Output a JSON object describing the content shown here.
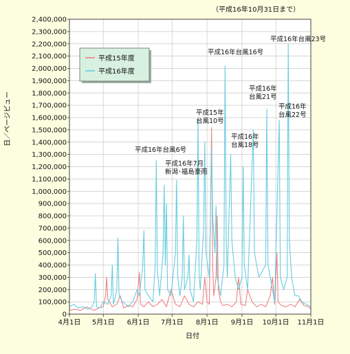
{
  "chart_data": {
    "type": "line",
    "title": "",
    "note": "（平成16年10月31日まで）",
    "xlabel": "日付",
    "ylabel": "日／ページビュー",
    "ylim": [
      0,
      2400000
    ],
    "yticks": [
      "0",
      "100,000",
      "200,000",
      "300,000",
      "400,000",
      "500,000",
      "600,000",
      "700,000",
      "800,000",
      "900,000",
      "1,000,000",
      "1,100,000",
      "1,200,000",
      "1,300,000",
      "1,400,000",
      "1,500,000",
      "1,600,000",
      "1,700,000",
      "1,800,000",
      "1,900,000",
      "2,000,000",
      "2,100,000",
      "2,200,000",
      "2,300,000",
      "2,400,000"
    ],
    "xticks": [
      "4月1日",
      "5月1日",
      "6月1日",
      "7月1日",
      "8月1日",
      "9月1日",
      "10月1日",
      "11月1日"
    ],
    "grid": true,
    "legend": "top-left",
    "series": [
      {
        "name": "平成15年度",
        "color": "#f08080",
        "points": [
          [
            0,
            30000
          ],
          [
            5,
            40000
          ],
          [
            10,
            30000
          ],
          [
            15,
            60000
          ],
          [
            18,
            45000
          ],
          [
            22,
            30000
          ],
          [
            26,
            50000
          ],
          [
            30,
            60000
          ],
          [
            32,
            150000
          ],
          [
            33,
            300000
          ],
          [
            34,
            120000
          ],
          [
            38,
            60000
          ],
          [
            42,
            80000
          ],
          [
            45,
            150000
          ],
          [
            48,
            50000
          ],
          [
            52,
            70000
          ],
          [
            56,
            60000
          ],
          [
            60,
            120000
          ],
          [
            62,
            340000
          ],
          [
            63,
            80000
          ],
          [
            66,
            60000
          ],
          [
            70,
            100000
          ],
          [
            74,
            60000
          ],
          [
            78,
            80000
          ],
          [
            82,
            120000
          ],
          [
            86,
            60000
          ],
          [
            90,
            200000
          ],
          [
            94,
            80000
          ],
          [
            98,
            60000
          ],
          [
            102,
            150000
          ],
          [
            106,
            80000
          ],
          [
            110,
            60000
          ],
          [
            114,
            100000
          ],
          [
            118,
            80000
          ],
          [
            120,
            300000
          ],
          [
            122,
            100000
          ],
          [
            124,
            80000
          ],
          [
            126,
            1520000
          ],
          [
            127,
            400000
          ],
          [
            128,
            150000
          ],
          [
            130,
            300000
          ],
          [
            131,
            800000
          ],
          [
            132,
            200000
          ],
          [
            134,
            100000
          ],
          [
            136,
            70000
          ],
          [
            140,
            80000
          ],
          [
            144,
            60000
          ],
          [
            148,
            100000
          ],
          [
            150,
            300000
          ],
          [
            152,
            80000
          ],
          [
            156,
            70000
          ],
          [
            158,
            200000
          ],
          [
            162,
            100000
          ],
          [
            166,
            60000
          ],
          [
            170,
            80000
          ],
          [
            174,
            60000
          ],
          [
            178,
            150000
          ],
          [
            180,
            300000
          ],
          [
            182,
            80000
          ],
          [
            184,
            500000
          ],
          [
            185,
            100000
          ],
          [
            188,
            70000
          ],
          [
            192,
            60000
          ],
          [
            196,
            80000
          ],
          [
            200,
            60000
          ],
          [
            204,
            120000
          ],
          [
            208,
            70000
          ],
          [
            212,
            60000
          ],
          [
            214,
            40000
          ]
        ]
      },
      {
        "name": "平成16年度",
        "color": "#66cce0",
        "points": [
          [
            0,
            60000
          ],
          [
            4,
            80000
          ],
          [
            8,
            50000
          ],
          [
            12,
            60000
          ],
          [
            16,
            40000
          ],
          [
            20,
            60000
          ],
          [
            22,
            100000
          ],
          [
            23,
            330000
          ],
          [
            24,
            60000
          ],
          [
            27,
            50000
          ],
          [
            30,
            100000
          ],
          [
            34,
            80000
          ],
          [
            37,
            150000
          ],
          [
            38,
            400000
          ],
          [
            39,
            80000
          ],
          [
            42,
            200000
          ],
          [
            43,
            620000
          ],
          [
            44,
            150000
          ],
          [
            47,
            100000
          ],
          [
            50,
            80000
          ],
          [
            52,
            60000
          ],
          [
            56,
            100000
          ],
          [
            60,
            200000
          ],
          [
            62,
            150000
          ],
          [
            65,
            400000
          ],
          [
            66,
            680000
          ],
          [
            67,
            200000
          ],
          [
            70,
            150000
          ],
          [
            74,
            100000
          ],
          [
            76,
            400000
          ],
          [
            77,
            1250000
          ],
          [
            78,
            350000
          ],
          [
            80,
            150000
          ],
          [
            83,
            500000
          ],
          [
            84,
            1050000
          ],
          [
            85,
            400000
          ],
          [
            86,
            900000
          ],
          [
            87,
            200000
          ],
          [
            90,
            150000
          ],
          [
            94,
            500000
          ],
          [
            95,
            1090000
          ],
          [
            96,
            300000
          ],
          [
            98,
            150000
          ],
          [
            100,
            300000
          ],
          [
            101,
            800000
          ],
          [
            102,
            200000
          ],
          [
            105,
            300000
          ],
          [
            106,
            480000
          ],
          [
            107,
            200000
          ],
          [
            110,
            100000
          ],
          [
            113,
            600000
          ],
          [
            114,
            1580000
          ],
          [
            115,
            300000
          ],
          [
            116,
            200000
          ],
          [
            119,
            700000
          ],
          [
            120,
            1400000
          ],
          [
            121,
            500000
          ],
          [
            124,
            300000
          ],
          [
            126,
            1350000
          ],
          [
            127,
            800000
          ],
          [
            129,
            500000
          ],
          [
            130,
            880000
          ],
          [
            131,
            300000
          ],
          [
            134,
            150000
          ],
          [
            137,
            400000
          ],
          [
            138,
            2020000
          ],
          [
            139,
            600000
          ],
          [
            140,
            300000
          ],
          [
            143,
            1300000
          ],
          [
            144,
            600000
          ],
          [
            147,
            300000
          ],
          [
            150,
            200000
          ],
          [
            153,
            300000
          ],
          [
            154,
            1200000
          ],
          [
            155,
            400000
          ],
          [
            158,
            200000
          ],
          [
            163,
            1500000
          ],
          [
            164,
            500000
          ],
          [
            168,
            300000
          ],
          [
            174,
            400000
          ],
          [
            175,
            1670000
          ],
          [
            176,
            400000
          ],
          [
            180,
            200000
          ],
          [
            182,
            100000
          ],
          [
            186,
            1580000
          ],
          [
            187,
            300000
          ],
          [
            190,
            200000
          ],
          [
            193,
            300000
          ],
          [
            194,
            2200000
          ],
          [
            195,
            600000
          ],
          [
            197,
            300000
          ],
          [
            200,
            150000
          ],
          [
            203,
            150000
          ],
          [
            206,
            100000
          ],
          [
            210,
            80000
          ],
          [
            214,
            60000
          ]
        ]
      }
    ],
    "annotations": [
      {
        "lines": [
          "平成16年台風23号"
        ]
      },
      {
        "lines": [
          "平成16年台風16号"
        ]
      },
      {
        "lines": [
          "平成16年",
          "台風21号"
        ]
      },
      {
        "lines": [
          "平成16年",
          "台風22号"
        ]
      },
      {
        "lines": [
          "平成15年",
          "台風10号"
        ]
      },
      {
        "lines": [
          "平成16年",
          "台風18号"
        ]
      },
      {
        "lines": [
          "平成16年台風6号"
        ]
      },
      {
        "lines": [
          "平成16年7月",
          "新潟･福島豪雨"
        ]
      }
    ]
  }
}
